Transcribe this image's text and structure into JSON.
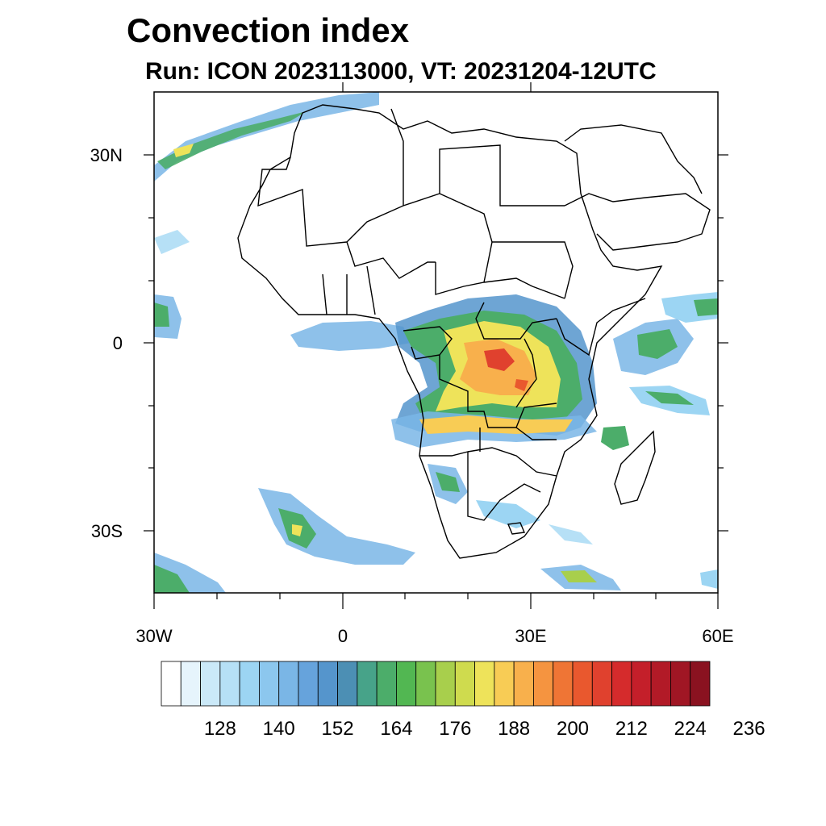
{
  "title": "Convection index",
  "subtitle": "Run: ICON 2023113000,  VT: 20231204-12UTC",
  "axes": {
    "lat_labels": [
      "30N",
      "0",
      "30S"
    ],
    "lon_labels": [
      "30W",
      "0",
      "30E",
      "60E"
    ]
  },
  "colorbar": {
    "labels": [
      "128",
      "140",
      "152",
      "164",
      "176",
      "188",
      "200",
      "212",
      "224",
      "236"
    ],
    "colors": [
      "#ffffff",
      "#e6f4fc",
      "#cbe9f8",
      "#b6e0f6",
      "#9cd5f3",
      "#8cc7ee",
      "#7ab6e6",
      "#66a3dc",
      "#5595cc",
      "#4c8fb4",
      "#47a389",
      "#4cad6a",
      "#52b752",
      "#79c24e",
      "#a8cf4c",
      "#cfdb4e",
      "#eee35a",
      "#f8cc55",
      "#f8b04c",
      "#f59440",
      "#ef7535",
      "#e9582e",
      "#e0412e",
      "#d52b2c",
      "#c41f2a",
      "#b21a27",
      "#a01624",
      "#8a1220"
    ]
  },
  "legend_colors": {
    "low": "#9cd5f3",
    "mid": "#4cad6a",
    "high": "#eee35a",
    "peak": "#e0412e"
  }
}
